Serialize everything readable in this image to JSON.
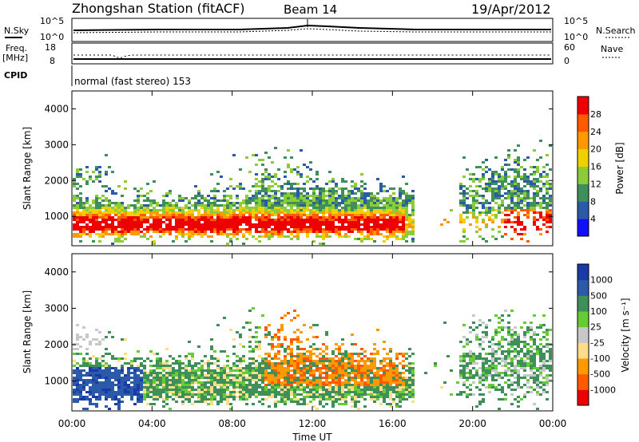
{
  "header": {
    "station": "Zhongshan Station (fitACF)",
    "beam": "Beam 14",
    "date": "19/Apr/2012"
  },
  "top_panels": {
    "nsky_label": "N.Sky",
    "nsky_max": "10^5",
    "nsky_min": "10^0",
    "nsearch_label": "N.Search",
    "nsearch_max": "10^5",
    "nsearch_min": "10^0",
    "freq_label": "Freq.",
    "freq_unit": "[MHz]",
    "freq_max": "18",
    "freq_min": "8",
    "nave_label": "Nave",
    "nave_max": "60",
    "nave_min": "0",
    "cpid_label": "CPID",
    "cpid_value": "normal (fast stereo) 153"
  },
  "colors": {
    "power": [
      "#1010ff",
      "#2a5aa8",
      "#3f8f5a",
      "#8ccc3a",
      "#f0d000",
      "#ff9900",
      "#ff5a00",
      "#ee0000"
    ],
    "velocity": [
      "#ee0000",
      "#ff5a00",
      "#ff9900",
      "#ffdd88",
      "#c8c8c8",
      "#66cc33",
      "#3f8f5a",
      "#2a5aa8",
      "#1a3aa8"
    ]
  },
  "chart_data": [
    {
      "type": "heatmap",
      "title": "",
      "xlabel": "",
      "ylabel": "Slant Range [km]",
      "x_ticks": [
        "00:00",
        "04:00",
        "08:00",
        "12:00",
        "16:00",
        "20:00",
        "00:00"
      ],
      "y_ticks": [
        "1000",
        "2000",
        "3000",
        "4000"
      ],
      "ylim": [
        180,
        4500
      ],
      "colorbar_label": "Power [dB]",
      "colorbar_ticks": [
        "4",
        "8",
        "12",
        "16",
        "20",
        "24",
        "28"
      ],
      "colorbar_range": [
        0,
        32
      ]
    },
    {
      "type": "heatmap",
      "title": "",
      "xlabel": "Time UT",
      "ylabel": "Slant Range [km]",
      "x_ticks": [
        "00:00",
        "04:00",
        "08:00",
        "12:00",
        "16:00",
        "20:00",
        "00:00"
      ],
      "y_ticks": [
        "1000",
        "2000",
        "3000",
        "4000"
      ],
      "ylim": [
        180,
        4500
      ],
      "colorbar_label": "Velocity [m s⁻¹]",
      "colorbar_ticks": [
        "1000",
        "500",
        "100",
        "25",
        "-25",
        "-100",
        "-500",
        "-1000"
      ]
    }
  ]
}
